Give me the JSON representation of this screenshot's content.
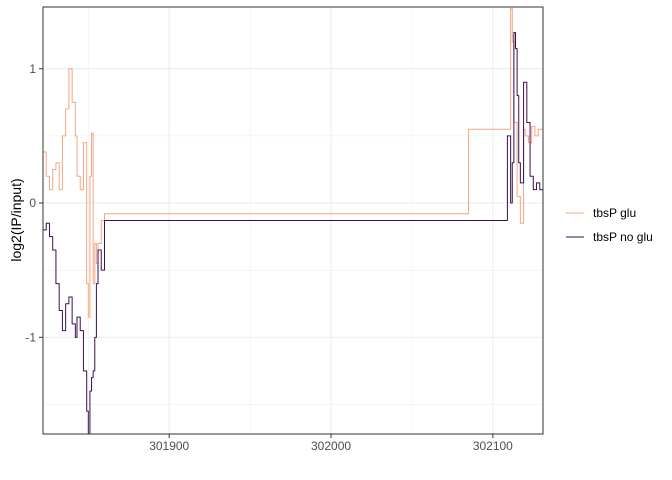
{
  "chart_data": {
    "type": "line",
    "title": "",
    "xlabel": "",
    "ylabel": "log2(IP/input)",
    "xlim": [
      301822,
      302131
    ],
    "ylim": [
      -1.72,
      1.46
    ],
    "x_ticks": [
      301900,
      302000,
      302100
    ],
    "x_tick_labels": [
      "301900",
      "302000",
      "302100"
    ],
    "y_ticks": [
      -1,
      0,
      1
    ],
    "y_tick_labels": [
      "-1",
      "0",
      "1"
    ],
    "grid": true,
    "legend_position": "right",
    "series": [
      {
        "name": "tbsP glu",
        "color": "#F4A582",
        "x": [
          301822,
          301824,
          301826,
          301828,
          301830,
          301832,
          301834,
          301836,
          301838,
          301840,
          301842,
          301843,
          301845,
          301847,
          301849,
          301850,
          301851,
          301852,
          301853,
          301854,
          301855,
          301856,
          301858,
          301860,
          301862,
          302085,
          302085,
          302110,
          302111,
          302112,
          302113,
          302115,
          302117,
          302119,
          302120,
          302122,
          302124,
          302126,
          302128,
          302131
        ],
        "y": [
          0.38,
          0.2,
          0.1,
          0.25,
          0.3,
          0.1,
          0.5,
          0.7,
          1.0,
          0.75,
          0.5,
          0.2,
          0.1,
          0.45,
          -0.6,
          -0.85,
          0.2,
          0.52,
          -0.6,
          -0.3,
          -0.45,
          -0.3,
          -0.13,
          -0.08,
          -0.08,
          -0.08,
          0.55,
          0.55,
          1.45,
          1.2,
          0.6,
          0.05,
          -0.15,
          0.55,
          0.5,
          0.45,
          0.57,
          0.5,
          0.55,
          0.5
        ]
      },
      {
        "name": "tbsP no glu",
        "color": "#3B0F4F",
        "x": [
          301822,
          301824,
          301826,
          301828,
          301830,
          301832,
          301834,
          301836,
          301838,
          301840,
          301842,
          301843,
          301845,
          301847,
          301849,
          301850,
          301851,
          301852,
          301853,
          301854,
          301855,
          301856,
          301858,
          301860,
          301862,
          302109,
          302109,
          302111,
          302112,
          302113,
          302114,
          302115,
          302116,
          302117,
          302119,
          302121,
          302123,
          302125,
          302127,
          302129,
          302131
        ],
        "y": [
          -0.2,
          -0.15,
          -0.25,
          -0.35,
          -0.6,
          -0.8,
          -0.95,
          -0.75,
          -0.7,
          -0.9,
          -1.0,
          -0.85,
          -0.95,
          -1.25,
          -1.55,
          -1.72,
          -1.4,
          -1.3,
          -1.25,
          -1.0,
          -0.6,
          -0.35,
          -0.5,
          -0.13,
          -0.13,
          -0.13,
          0.5,
          0.0,
          0.3,
          1.27,
          1.15,
          0.8,
          0.3,
          0.15,
          0.9,
          0.6,
          0.2,
          0.1,
          0.15,
          0.1,
          0.17
        ]
      }
    ]
  }
}
